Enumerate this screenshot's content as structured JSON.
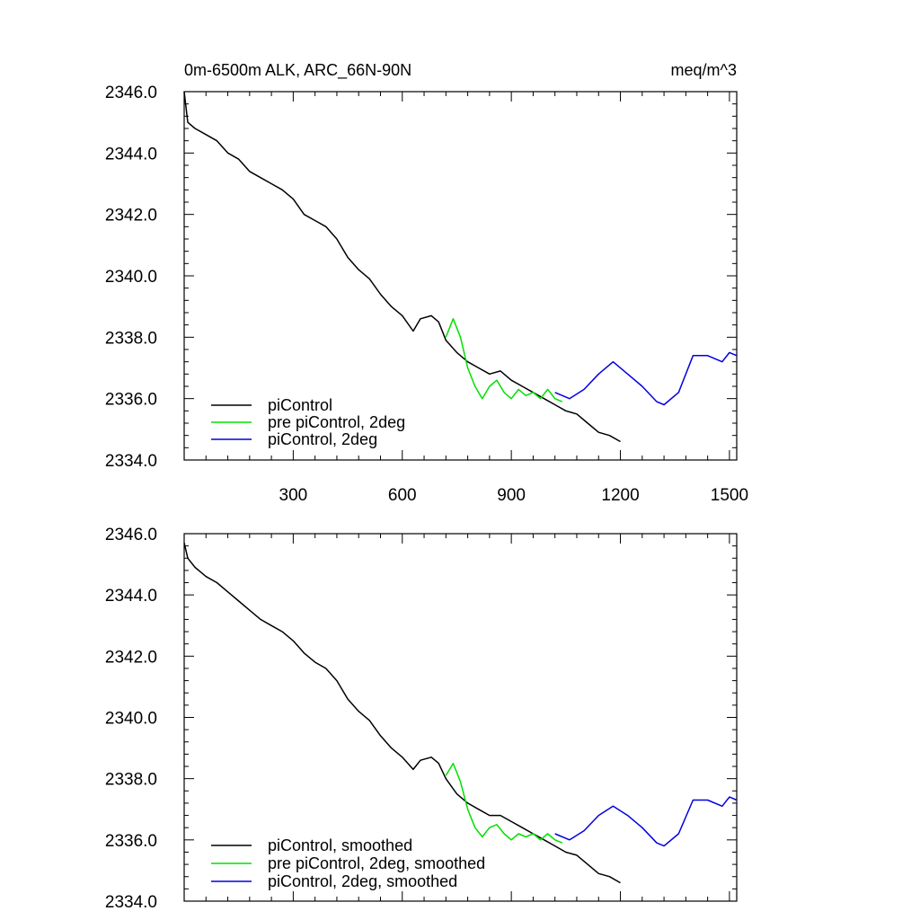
{
  "title": "0m-6500m ALK, ARC_66N-90N",
  "units": "meq/m^3",
  "colors": {
    "piControl": "#000000",
    "pre_piControl_2deg": "#00e000",
    "piControl_2deg": "#0000e0"
  },
  "chart_data": [
    {
      "type": "line",
      "panel": "raw",
      "xlim": [
        0,
        1520
      ],
      "ylim": [
        2334.0,
        2346.0
      ],
      "xticks": [
        300,
        600,
        900,
        1200,
        1500
      ],
      "xtick_labels": [
        "300",
        "600",
        "900",
        "1200",
        "1500"
      ],
      "yticks": [
        2334.0,
        2336.0,
        2338.0,
        2340.0,
        2342.0,
        2344.0,
        2346.0
      ],
      "ytick_labels": [
        "2334.0",
        "2336.0",
        "2338.0",
        "2340.0",
        "2342.0",
        "2344.0",
        "2346.0"
      ],
      "legend_position": "bottom-left",
      "series": [
        {
          "name": "piControl",
          "color": "#000000",
          "x": [
            0,
            10,
            30,
            60,
            90,
            120,
            150,
            180,
            210,
            240,
            270,
            300,
            330,
            360,
            390,
            420,
            450,
            480,
            510,
            540,
            570,
            600,
            630,
            650,
            680,
            700,
            720,
            750,
            780,
            810,
            840,
            870,
            900,
            930,
            960,
            990,
            1020,
            1050,
            1080,
            1110,
            1140,
            1170,
            1200
          ],
          "y": [
            2346.0,
            2345.0,
            2344.8,
            2344.6,
            2344.4,
            2344.0,
            2343.8,
            2343.4,
            2343.2,
            2343.0,
            2342.8,
            2342.5,
            2342.0,
            2341.8,
            2341.6,
            2341.2,
            2340.6,
            2340.2,
            2339.9,
            2339.4,
            2339.0,
            2338.7,
            2338.2,
            2338.6,
            2338.7,
            2338.5,
            2337.9,
            2337.5,
            2337.2,
            2337.0,
            2336.8,
            2336.9,
            2336.6,
            2336.4,
            2336.2,
            2336.0,
            2335.8,
            2335.6,
            2335.5,
            2335.2,
            2334.9,
            2334.8,
            2334.6
          ]
        },
        {
          "name": "pre piControl, 2deg",
          "color": "#00e000",
          "x": [
            720,
            740,
            760,
            780,
            800,
            820,
            840,
            860,
            880,
            900,
            920,
            940,
            960,
            980,
            1000,
            1020,
            1040
          ],
          "y": [
            2338.0,
            2338.6,
            2338.0,
            2337.0,
            2336.4,
            2336.0,
            2336.4,
            2336.6,
            2336.2,
            2336.0,
            2336.3,
            2336.1,
            2336.2,
            2336.0,
            2336.3,
            2336.0,
            2335.9
          ]
        },
        {
          "name": "piControl, 2deg",
          "color": "#0000e0",
          "x": [
            1020,
            1060,
            1100,
            1140,
            1180,
            1220,
            1260,
            1300,
            1320,
            1360,
            1400,
            1440,
            1480,
            1500,
            1520
          ],
          "y": [
            2336.2,
            2336.0,
            2336.3,
            2336.8,
            2337.2,
            2336.8,
            2336.4,
            2335.9,
            2335.8,
            2336.2,
            2337.4,
            2337.4,
            2337.2,
            2337.5,
            2337.4
          ]
        }
      ]
    },
    {
      "type": "line",
      "panel": "smoothed",
      "xlim": [
        0,
        1520
      ],
      "ylim": [
        2334.0,
        2346.0
      ],
      "xticks": [
        300,
        600,
        900,
        1200,
        1500
      ],
      "xtick_labels": [],
      "yticks": [
        2334.0,
        2336.0,
        2338.0,
        2340.0,
        2342.0,
        2344.0,
        2346.0
      ],
      "ytick_labels": [
        "2334.0",
        "2336.0",
        "2338.0",
        "2340.0",
        "2342.0",
        "2344.0",
        "2346.0"
      ],
      "legend_position": "bottom-left",
      "series": [
        {
          "name": "piControl, smoothed",
          "color": "#000000",
          "x": [
            0,
            10,
            30,
            60,
            90,
            120,
            150,
            180,
            210,
            240,
            270,
            300,
            330,
            360,
            390,
            420,
            450,
            480,
            510,
            540,
            570,
            600,
            630,
            650,
            680,
            700,
            720,
            750,
            780,
            810,
            840,
            870,
            900,
            930,
            960,
            990,
            1020,
            1050,
            1080,
            1110,
            1140,
            1170,
            1200
          ],
          "y": [
            2345.7,
            2345.2,
            2344.9,
            2344.6,
            2344.4,
            2344.1,
            2343.8,
            2343.5,
            2343.2,
            2343.0,
            2342.8,
            2342.5,
            2342.1,
            2341.8,
            2341.6,
            2341.2,
            2340.6,
            2340.2,
            2339.9,
            2339.4,
            2339.0,
            2338.7,
            2338.3,
            2338.6,
            2338.7,
            2338.5,
            2338.0,
            2337.5,
            2337.2,
            2337.0,
            2336.8,
            2336.8,
            2336.6,
            2336.4,
            2336.2,
            2336.0,
            2335.8,
            2335.6,
            2335.5,
            2335.2,
            2334.9,
            2334.8,
            2334.6
          ]
        },
        {
          "name": "pre piControl, 2deg, smoothed",
          "color": "#00e000",
          "x": [
            720,
            740,
            760,
            780,
            800,
            820,
            840,
            860,
            880,
            900,
            920,
            940,
            960,
            980,
            1000,
            1020,
            1040
          ],
          "y": [
            2338.1,
            2338.5,
            2337.9,
            2337.0,
            2336.4,
            2336.1,
            2336.4,
            2336.5,
            2336.2,
            2336.0,
            2336.2,
            2336.1,
            2336.2,
            2336.0,
            2336.2,
            2336.0,
            2335.9
          ]
        },
        {
          "name": "piControl, 2deg, smoothed",
          "color": "#0000e0",
          "x": [
            1020,
            1060,
            1100,
            1140,
            1180,
            1220,
            1260,
            1300,
            1320,
            1360,
            1400,
            1440,
            1480,
            1500,
            1520
          ],
          "y": [
            2336.2,
            2336.0,
            2336.3,
            2336.8,
            2337.1,
            2336.8,
            2336.4,
            2335.9,
            2335.8,
            2336.2,
            2337.3,
            2337.3,
            2337.1,
            2337.4,
            2337.3
          ]
        }
      ]
    }
  ]
}
